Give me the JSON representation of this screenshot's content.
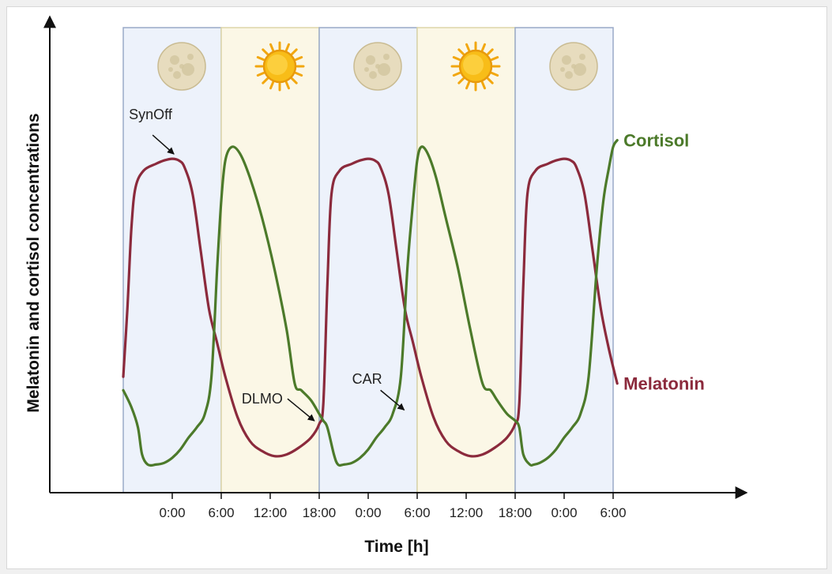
{
  "chart_data": {
    "type": "line",
    "title": "",
    "xlabel": "Time [h]",
    "ylabel": "Melatonin and cortisol concentrations",
    "xlim": [
      -3,
      81
    ],
    "ylim": [
      0,
      1
    ],
    "x_ticks": [
      {
        "value": 12,
        "label": "0:00"
      },
      {
        "value": 18,
        "label": "6:00"
      },
      {
        "value": 24,
        "label": "12:00"
      },
      {
        "value": 30,
        "label": "18:00"
      },
      {
        "value": 36,
        "label": "0:00"
      },
      {
        "value": 42,
        "label": "6:00"
      },
      {
        "value": 48,
        "label": "12:00"
      },
      {
        "value": 54,
        "label": "18:00"
      },
      {
        "value": 60,
        "label": "0:00"
      },
      {
        "value": 66,
        "label": "6:00"
      }
    ],
    "bands": [
      {
        "start": 6,
        "end": 18,
        "kind": "night",
        "icon": "moon-icon"
      },
      {
        "start": 18,
        "end": 30,
        "kind": "day",
        "icon": "sun-icon"
      },
      {
        "start": 30,
        "end": 42,
        "kind": "night",
        "icon": "moon-icon"
      },
      {
        "start": 42,
        "end": 54,
        "kind": "day",
        "icon": "sun-icon"
      },
      {
        "start": 54,
        "end": 66,
        "kind": "night",
        "icon": "moon-icon"
      }
    ],
    "series": [
      {
        "name": "Melatonin",
        "label": "Melatonin",
        "color": "#8b2a3c",
        "x": [
          6,
          6.5,
          7,
          7.5,
          8.5,
          10,
          11,
          12,
          12.8,
          13.5,
          14.5,
          15.5,
          16.5,
          17.5,
          18.5,
          20,
          21.5,
          23,
          24.5,
          26,
          27.5,
          29,
          30,
          30.5,
          31,
          31.5,
          32.5,
          34,
          35,
          36,
          36.8,
          37.5,
          38.5,
          39.5,
          40.5,
          41.5,
          42.5,
          44,
          45.5,
          47,
          48.5,
          50,
          51.5,
          53,
          54,
          54.5,
          55,
          55.5,
          56.5,
          58,
          59,
          60,
          60.8,
          61.5,
          62.5,
          63.5,
          64.5,
          65.5,
          66.5
        ],
        "values": [
          0.28,
          0.48,
          0.72,
          0.84,
          0.89,
          0.91,
          0.92,
          0.925,
          0.92,
          0.9,
          0.82,
          0.65,
          0.48,
          0.38,
          0.28,
          0.16,
          0.09,
          0.06,
          0.045,
          0.05,
          0.07,
          0.1,
          0.14,
          0.2,
          0.55,
          0.82,
          0.89,
          0.91,
          0.92,
          0.925,
          0.92,
          0.9,
          0.82,
          0.65,
          0.48,
          0.38,
          0.28,
          0.16,
          0.09,
          0.06,
          0.045,
          0.05,
          0.07,
          0.1,
          0.14,
          0.2,
          0.55,
          0.82,
          0.89,
          0.91,
          0.92,
          0.925,
          0.92,
          0.9,
          0.82,
          0.65,
          0.48,
          0.36,
          0.26
        ]
      },
      {
        "name": "Cortisol",
        "label": "Cortisol",
        "color": "#4c7a2a",
        "x": [
          6,
          7,
          7.8,
          8.3,
          9,
          10,
          11,
          12,
          13,
          14,
          15,
          16,
          16.8,
          17.5,
          18,
          18.5,
          19.3,
          20.3,
          21.5,
          23,
          24.5,
          26,
          27,
          27.8,
          29,
          30,
          30.5,
          31,
          31.8,
          32.3,
          33,
          34,
          35,
          36,
          37,
          38,
          39,
          40,
          40.8,
          41.5,
          42,
          42.5,
          43.3,
          44.3,
          45.5,
          47,
          48.5,
          50,
          51,
          51.8,
          53,
          54,
          54.5,
          55,
          55.8,
          56.3,
          57,
          58,
          59,
          60,
          61,
          62,
          63,
          64,
          64.8,
          65.5,
          66,
          66.5
        ],
        "values": [
          0.24,
          0.19,
          0.13,
          0.05,
          0.02,
          0.02,
          0.025,
          0.04,
          0.065,
          0.1,
          0.13,
          0.17,
          0.28,
          0.6,
          0.8,
          0.92,
          0.96,
          0.94,
          0.87,
          0.75,
          0.6,
          0.42,
          0.26,
          0.24,
          0.21,
          0.17,
          0.15,
          0.13,
          0.05,
          0.02,
          0.02,
          0.025,
          0.04,
          0.065,
          0.1,
          0.13,
          0.17,
          0.28,
          0.6,
          0.8,
          0.92,
          0.96,
          0.94,
          0.87,
          0.75,
          0.6,
          0.42,
          0.26,
          0.24,
          0.21,
          0.17,
          0.15,
          0.13,
          0.05,
          0.02,
          0.02,
          0.025,
          0.04,
          0.065,
          0.1,
          0.13,
          0.17,
          0.28,
          0.6,
          0.8,
          0.9,
          0.96,
          0.98
        ]
      }
    ],
    "annotations": [
      {
        "text": "SynOff",
        "x": 12.5,
        "y": 0.925
      },
      {
        "text": "DLMO",
        "x": 29.8,
        "y": 0.14
      },
      {
        "text": "CAR",
        "x": 40.8,
        "y": 0.17
      }
    ]
  }
}
